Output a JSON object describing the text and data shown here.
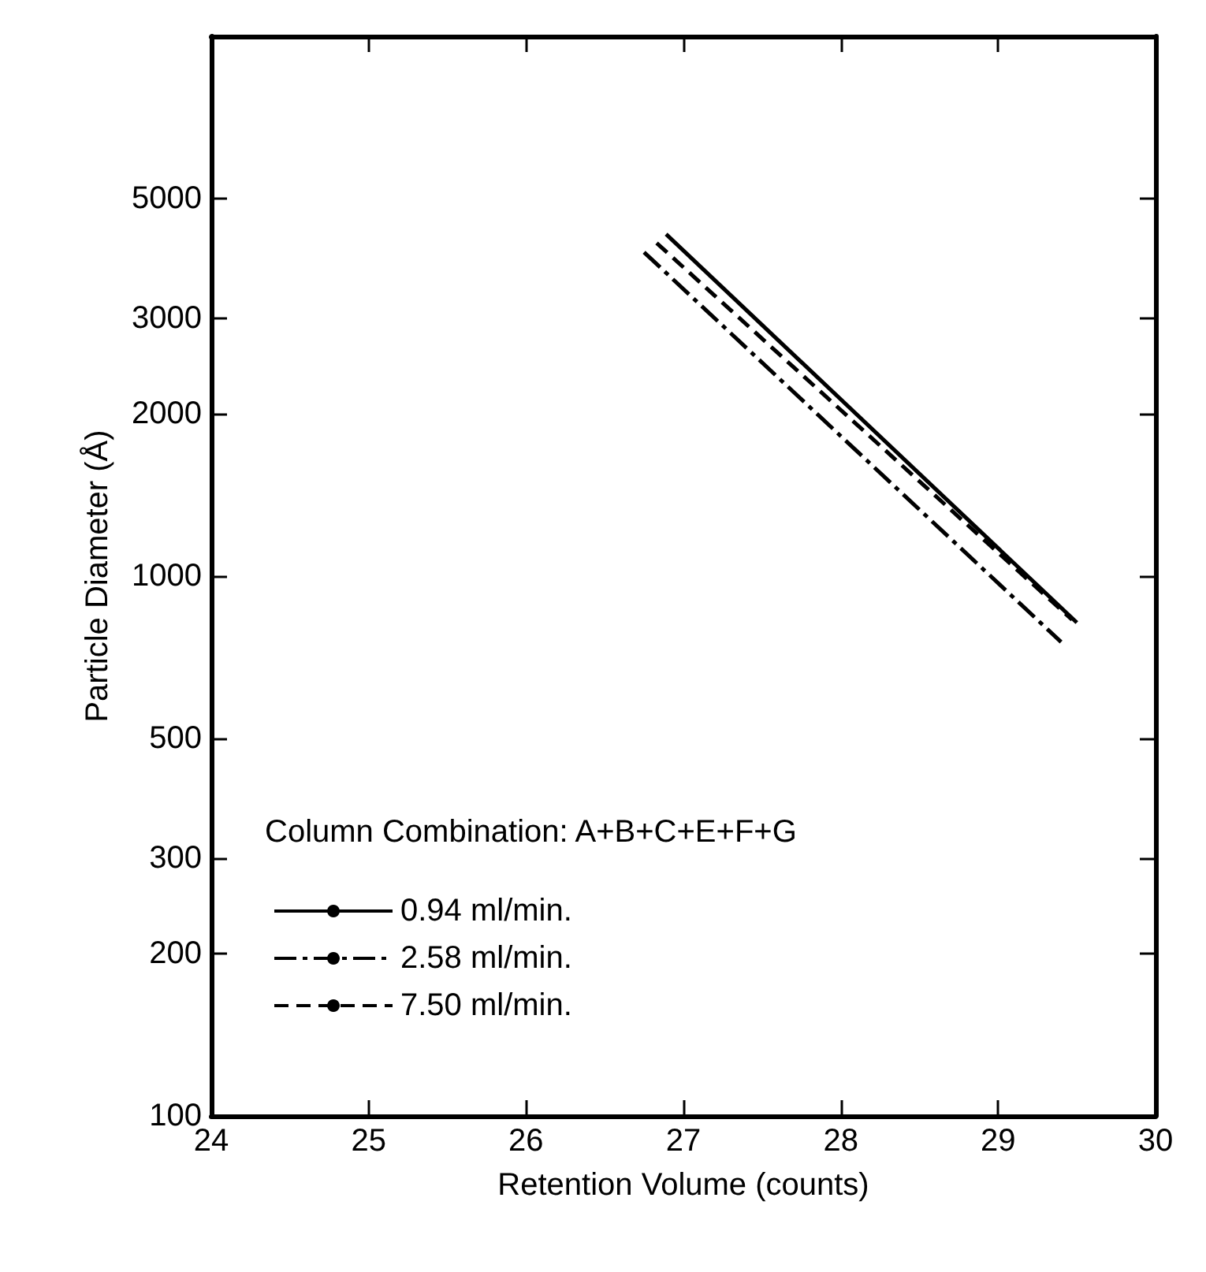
{
  "chart_data": {
    "type": "line",
    "xlabel": "Retention Volume (counts)",
    "ylabel": "Particle Diameter (Å)",
    "legend_title": "Column Combination: A+B+C+E+F+G",
    "log": "y",
    "xlim": [
      24,
      30
    ],
    "xticks": [
      24,
      25,
      26,
      27,
      28,
      29,
      30
    ],
    "ylim": [
      100,
      10000
    ],
    "yticks": [
      100,
      200,
      300,
      500,
      1000,
      2000,
      3000,
      5000
    ],
    "grid": false,
    "legend": "bottom left",
    "marker": "none",
    "series": [
      {
        "name": "0.94 ml/min.",
        "color": "#000000",
        "line_style": "solid",
        "x": [
          26.89,
          29.5
        ],
        "values": [
          4300,
          820
        ]
      },
      {
        "name": "2.58 ml/min.",
        "color": "#000000",
        "line_style": "dashdot",
        "x": [
          26.75,
          29.4
        ],
        "values": [
          3980,
          755
        ]
      },
      {
        "name": "7.50 ml/min.",
        "color": "#000000",
        "line_style": "dashed",
        "x": [
          26.83,
          29.47
        ],
        "values": [
          4140,
          830
        ]
      }
    ]
  }
}
